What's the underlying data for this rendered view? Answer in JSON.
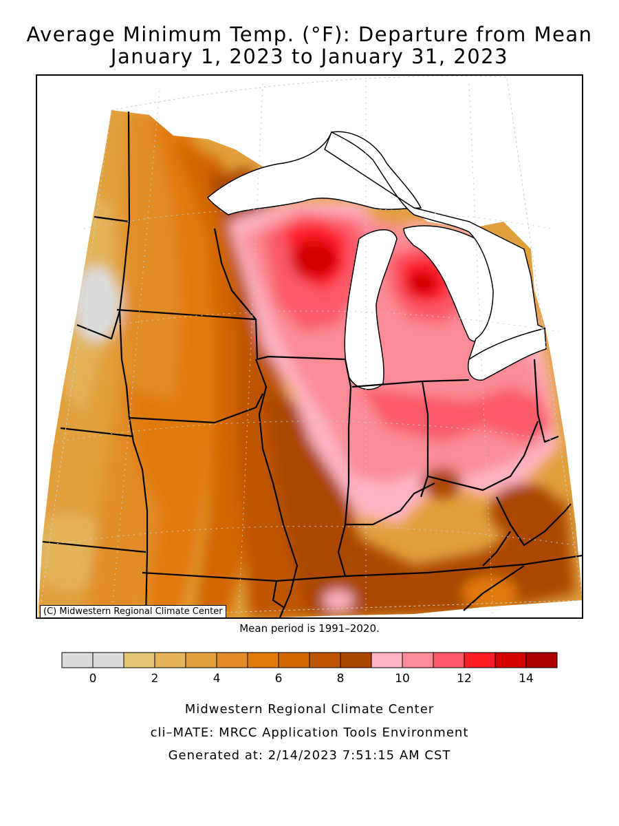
{
  "title": {
    "line1": "Average Minimum Temp. (°F): Departure from Mean",
    "line2": "January 1, 2023 to January 31, 2023"
  },
  "map": {
    "copyright": "(C) Midwestern Regional Climate Center",
    "water_color": "#ffffff",
    "boundary_color": "#000000"
  },
  "mean_period": "Mean period is 1991–2020.",
  "legend": {
    "bins": [
      {
        "min": -1,
        "max": 0,
        "color": "#dcdcdc"
      },
      {
        "min": 0,
        "max": 1,
        "color": "#dcdcdc"
      },
      {
        "min": 1,
        "max": 2,
        "color": "#e6c878"
      },
      {
        "min": 2,
        "max": 3,
        "color": "#e3b45a"
      },
      {
        "min": 3,
        "max": 4,
        "color": "#e1a03c"
      },
      {
        "min": 4,
        "max": 5,
        "color": "#e18c28"
      },
      {
        "min": 5,
        "max": 6,
        "color": "#e17a0a"
      },
      {
        "min": 6,
        "max": 7,
        "color": "#d26600"
      },
      {
        "min": 7,
        "max": 8,
        "color": "#be5500"
      },
      {
        "min": 8,
        "max": 9,
        "color": "#aa4600"
      },
      {
        "min": 9,
        "max": 10,
        "color": "#ffb4c3"
      },
      {
        "min": 10,
        "max": 11,
        "color": "#fa8c96"
      },
      {
        "min": 11,
        "max": 12,
        "color": "#fa5a69"
      },
      {
        "min": 12,
        "max": 13,
        "color": "#ff1e28"
      },
      {
        "min": 13,
        "max": 14,
        "color": "#d20000"
      },
      {
        "min": 14,
        "max": 15,
        "color": "#aa0000"
      }
    ],
    "tick_labels": [
      "0",
      "2",
      "4",
      "6",
      "8",
      "10",
      "12",
      "14"
    ],
    "tick_values": [
      0,
      2,
      4,
      6,
      8,
      10,
      12,
      14
    ]
  },
  "footer": {
    "line1": "Midwestern Regional Climate Center",
    "line2": "cli–MATE: MRCC Application Tools Environment",
    "line3": "Generated at: 2/14/2023 7:51:15 AM CST"
  }
}
